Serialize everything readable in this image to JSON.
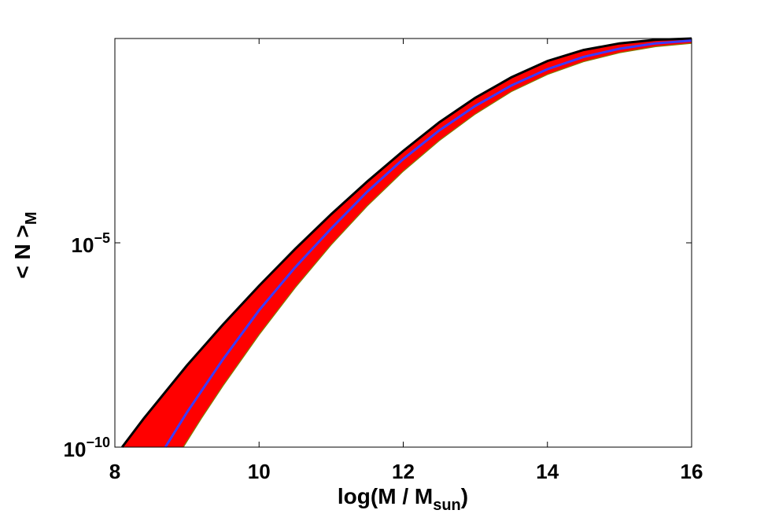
{
  "chart_data": {
    "type": "area",
    "title": "",
    "xlabel": {
      "main": "log(M / M",
      "sub": "sun",
      "tail": ")"
    },
    "ylabel": {
      "main": "< N >",
      "sub": "M"
    },
    "xlim": [
      8,
      16
    ],
    "ylim": [
      1e-10,
      1
    ],
    "yscale": "log",
    "grid": false,
    "legend": "none",
    "x_ticks": [
      "8",
      "10",
      "12",
      "14",
      "16"
    ],
    "y_ticks": [
      {
        "base": "10",
        "exp": "−10",
        "value": 1e-10
      },
      {
        "base": "10",
        "exp": "−5",
        "value": 1e-05
      }
    ],
    "colors": {
      "band_fill": "#ff0000",
      "upper_edge": "#000000",
      "lower_edge": "#808000",
      "median": "#3b3bff"
    },
    "series": [
      {
        "role": "upper",
        "x": [
          8.1,
          8.4,
          9.0,
          9.5,
          10.0,
          10.5,
          11.0,
          11.5,
          12.0,
          12.5,
          13.0,
          13.5,
          14.0,
          14.5,
          15.0,
          15.5,
          16.0
        ],
        "log10_y": [
          -10.0,
          -9.3,
          -8.0,
          -7.0,
          -6.05,
          -5.15,
          -4.3,
          -3.5,
          -2.75,
          -2.05,
          -1.45,
          -0.95,
          -0.55,
          -0.28,
          -0.12,
          -0.03,
          0.0
        ]
      },
      {
        "role": "median",
        "x": [
          8.7,
          9.0,
          9.5,
          10.0,
          10.5,
          11.0,
          11.5,
          12.0,
          12.5,
          13.0,
          13.5,
          14.0,
          14.5,
          15.0,
          15.5,
          16.0
        ],
        "log10_y": [
          -10.0,
          -9.15,
          -7.85,
          -6.65,
          -5.6,
          -4.65,
          -3.75,
          -2.95,
          -2.25,
          -1.65,
          -1.15,
          -0.75,
          -0.45,
          -0.25,
          -0.12,
          -0.05
        ]
      },
      {
        "role": "lower",
        "x": [
          8.95,
          9.2,
          9.5,
          10.0,
          10.5,
          11.0,
          11.5,
          12.0,
          12.5,
          13.0,
          13.5,
          14.0,
          14.5,
          15.0,
          15.5,
          16.0
        ],
        "log10_y": [
          -10.0,
          -9.3,
          -8.5,
          -7.25,
          -6.1,
          -5.05,
          -4.1,
          -3.25,
          -2.5,
          -1.85,
          -1.3,
          -0.88,
          -0.57,
          -0.35,
          -0.2,
          -0.12
        ]
      }
    ]
  }
}
